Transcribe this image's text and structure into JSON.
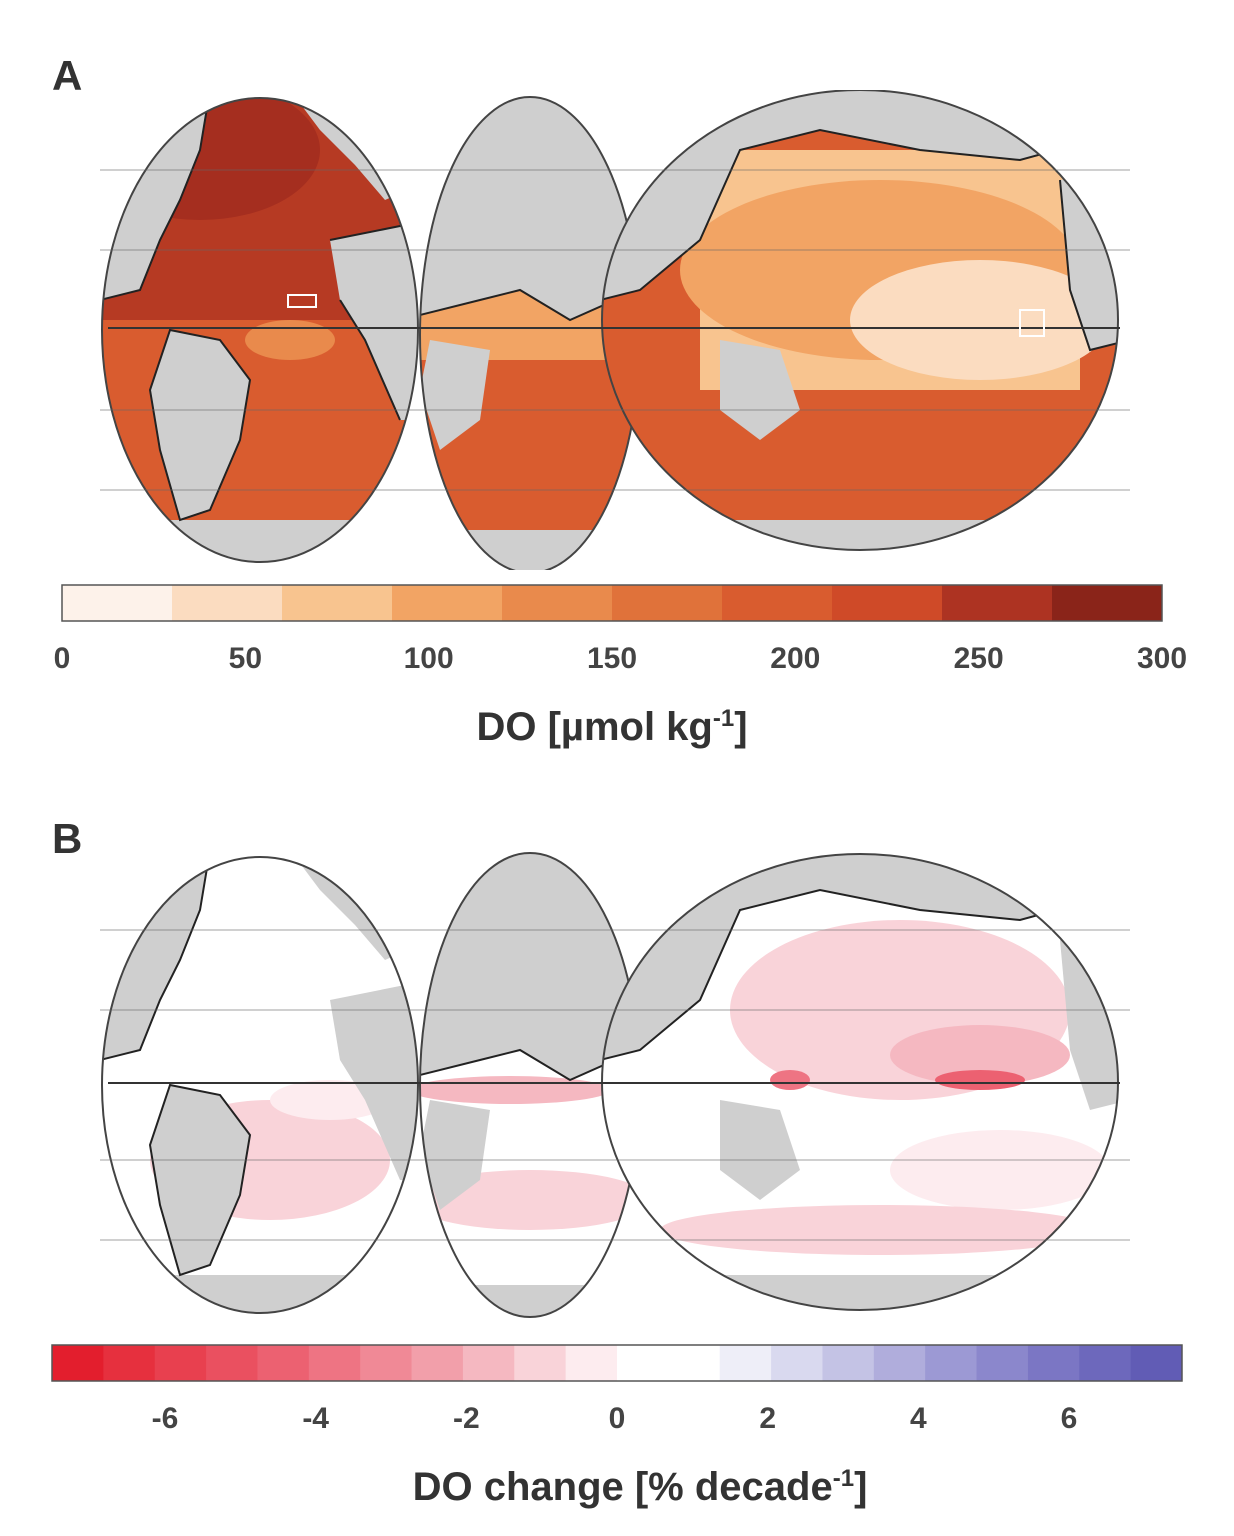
{
  "panels": [
    {
      "letter": "A",
      "colorbar": {
        "label_main": "DO [µmol kg",
        "label_sup": "-1",
        "label_end": "]",
        "min": 0,
        "max": 300,
        "ticks": [
          "0",
          "50",
          "100",
          "150",
          "200",
          "250",
          "300"
        ],
        "tick_values": [
          0,
          50,
          100,
          150,
          200,
          250,
          300
        ],
        "colors": [
          "#fdf2ea",
          "#fbdcc0",
          "#f8c48f",
          "#f2a464",
          "#e98a4c",
          "#e0723a",
          "#d95c2f",
          "#cf4a28",
          "#ad3322",
          "#8a2419"
        ]
      }
    },
    {
      "letter": "B",
      "colorbar": {
        "label_main": "DO change [% decade",
        "label_sup": "-1",
        "label_end": "]",
        "min": -7.5,
        "max": 7.5,
        "ticks": [
          "-6",
          "-4",
          "-2",
          "0",
          "2",
          "4",
          "6"
        ],
        "tick_values": [
          -6,
          -4,
          -2,
          0,
          2,
          4,
          6
        ],
        "colors": [
          "#e31e2d",
          "#e6303e",
          "#e8404f",
          "#ea5060",
          "#ec6171",
          "#ee7483",
          "#f08996",
          "#f29faa",
          "#f5b8c1",
          "#f9d3d9",
          "#fdecef",
          "#ffffff",
          "#ffffff",
          "#eeeef8",
          "#d9d9ef",
          "#c4c3e5",
          "#b0addc",
          "#9c99d4",
          "#8b87cc",
          "#7b76c4",
          "#6d68bc",
          "#615cb5"
        ]
      }
    }
  ],
  "colors": {
    "land": "#cfcfcf",
    "coast": "#222222",
    "grid": "#666666"
  }
}
